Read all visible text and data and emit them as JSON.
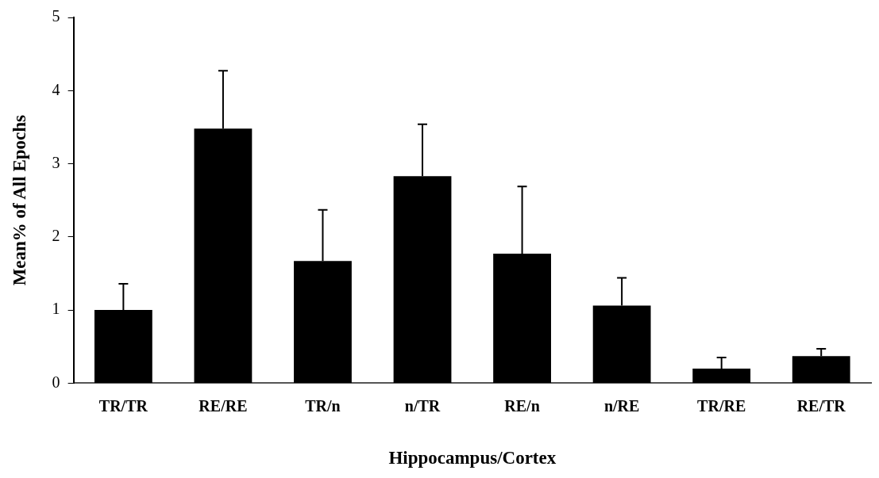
{
  "chart_data": {
    "type": "bar",
    "xlabel": "Hippocampus/Cortex",
    "ylabel": "Mean% of All Epochs",
    "categories": [
      "TR/TR",
      "RE/RE",
      "TR/n",
      "n/TR",
      "RE/n",
      "n/RE",
      "TR/RE",
      "RE/TR"
    ],
    "values": [
      1.0,
      3.48,
      1.67,
      2.83,
      1.77,
      1.06,
      0.2,
      0.37
    ],
    "errors": [
      [
        1.0,
        1.36
      ],
      [
        3.48,
        4.27
      ],
      [
        1.67,
        2.37
      ],
      [
        2.83,
        3.54
      ],
      [
        1.77,
        2.69
      ],
      [
        1.06,
        1.44
      ],
      [
        0.2,
        0.35
      ],
      [
        0.37,
        0.47
      ]
    ],
    "color": "#000000",
    "ylim": [
      0,
      5
    ],
    "yticks": [
      0,
      1,
      2,
      3,
      4,
      5
    ],
    "grid": false,
    "legend": false
  }
}
